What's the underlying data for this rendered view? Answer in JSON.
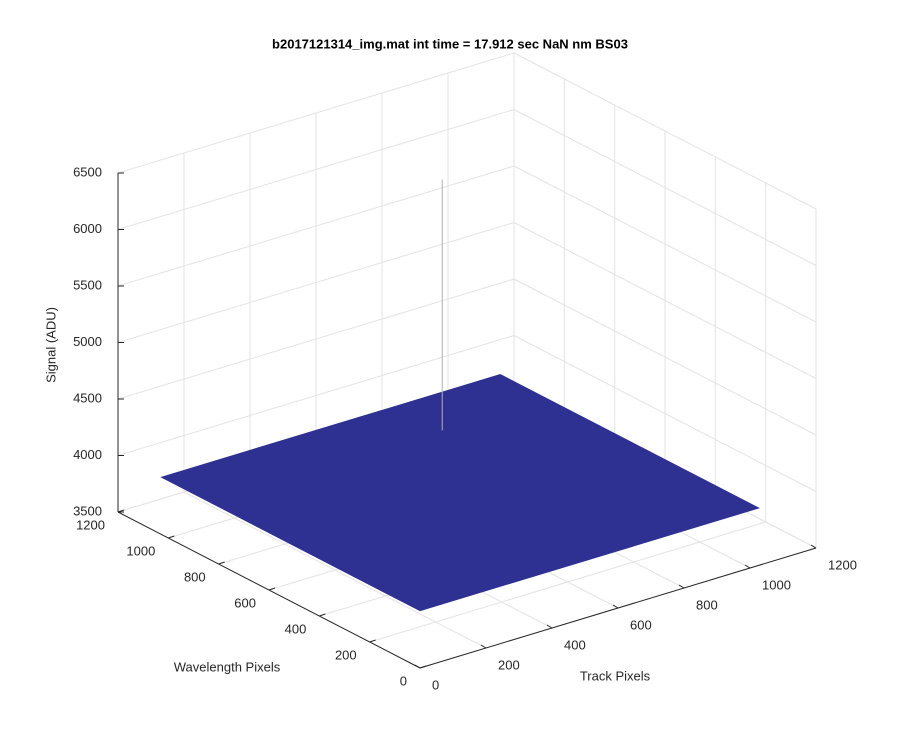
{
  "chart_data": {
    "type": "surface3d",
    "title": "b2017121314_img.mat int time = 17.912 sec  NaN nm BS03",
    "xlabel": "Track Pixels",
    "ylabel": "Wavelength Pixels",
    "zlabel": "Signal (ADU)",
    "xlim": [
      0,
      1200
    ],
    "xticks": [
      0,
      200,
      400,
      600,
      800,
      1000,
      1200
    ],
    "ylim": [
      0,
      1200
    ],
    "yticks": [
      0,
      200,
      400,
      600,
      800,
      1000,
      1200
    ],
    "zlim": [
      3500,
      6500
    ],
    "zticks": [
      3500,
      4000,
      4500,
      5000,
      5500,
      6000,
      6500
    ],
    "grid": true,
    "surface": {
      "x": [
        0,
        1024
      ],
      "y": [
        0,
        1024
      ],
      "z": 4010,
      "color": "#2e3192"
    },
    "peak": {
      "x": 708,
      "y": 840,
      "z": 6230,
      "color": "#b0b0b0"
    }
  }
}
